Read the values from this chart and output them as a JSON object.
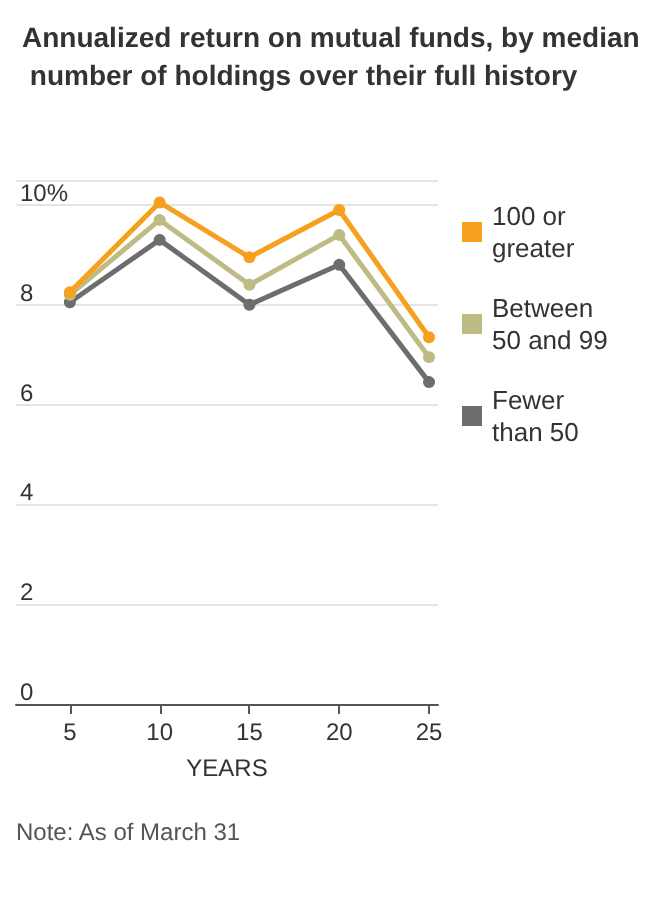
{
  "chart_data": {
    "type": "line",
    "title": "Annualized return on mutual funds, by median number of holdings over their full history",
    "xlabel": "YEARS",
    "x": [
      5,
      10,
      15,
      20,
      25
    ],
    "series": [
      {
        "name": "100 or greater",
        "color": "#f5a01e",
        "values": [
          8.25,
          10.05,
          8.95,
          9.9,
          7.35
        ]
      },
      {
        "name": "Between 50 and 99",
        "color": "#bfbb84",
        "values": [
          8.2,
          9.7,
          8.4,
          9.4,
          6.95
        ]
      },
      {
        "name": "Fewer than 50",
        "color": "#6d6d6d",
        "values": [
          8.05,
          9.3,
          8.0,
          8.8,
          6.45
        ]
      }
    ],
    "xlim": [
      2,
      25.5
    ],
    "xticks": [
      5,
      10,
      15,
      20,
      25
    ],
    "ylim": [
      0,
      10.5
    ],
    "yticks": [
      0,
      2,
      4,
      6,
      8,
      {
        "value": 10,
        "label": "10%"
      }
    ],
    "grid": "y",
    "legend": "right",
    "marker": "circle",
    "line_style": "solid",
    "annotations": [
      "Note: As of March 31"
    ]
  }
}
